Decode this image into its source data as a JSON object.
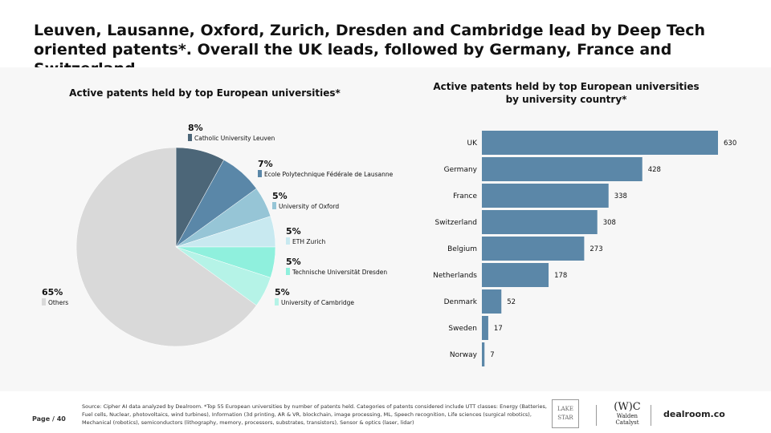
{
  "title": "Leuven, Lausanne, Oxford, Zurich, Dresden and Cambridge lead by Deep Tech oriented patents*. Overall the UK leads, followed by Germany, France and Switzerland.",
  "footer": {
    "source": "Source: Cipher AI data analyzed by Dealroom.  *Top 55 European universities by number of patents held. Categories of patents considered include UTT classes: Energy (Batteries, Fuel cells, Nuclear, photovoltaics, wind turbines), Information (3d printing, AR & VR, blockchain, image processing, ML, Speech recognition, Life sciences (surgical robotics), Mechanical (robotics), semiconductors (lithography, memory, processors, substrates, transistors), Sensor & optics (laser, lidar)",
    "page": "Page / 40",
    "logos": {
      "lake": "LAKE",
      "star": "STAR",
      "walden_mark": "(W)C",
      "walden": "Walden Catalyst",
      "dealroom": "dealroom.co"
    }
  },
  "chart_data": [
    {
      "type": "pie",
      "title": "Active patents held by top European universities*",
      "slices": [
        {
          "label": "Catholic University Leuven",
          "value": 8,
          "display": "8%",
          "color": "#4c6678"
        },
        {
          "label": "Ecole Polytechnique Fédérale de Lausanne",
          "value": 7,
          "display": "7%",
          "color": "#5a87a8"
        },
        {
          "label": "University of Oxford",
          "value": 5,
          "display": "5%",
          "color": "#96c5d6"
        },
        {
          "label": "ETH Zurich",
          "value": 5,
          "display": "5%",
          "color": "#c8e9f0"
        },
        {
          "label": "Technische Universität Dresden",
          "value": 5,
          "display": "5%",
          "color": "#8ff0dd"
        },
        {
          "label": "University of Cambridge",
          "value": 5,
          "display": "5%",
          "color": "#b5f3e7"
        },
        {
          "label": "Others",
          "value": 65,
          "display": "65%",
          "color": "#d9d9d9"
        }
      ]
    },
    {
      "type": "bar",
      "orientation": "horizontal",
      "title": "Active patents held by top European universities by university country*",
      "categories": [
        "UK",
        "Germany",
        "France",
        "Switzerland",
        "Belgium",
        "Netherlands",
        "Denmark",
        "Sweden",
        "Norway"
      ],
      "values": [
        630,
        428,
        338,
        308,
        273,
        178,
        52,
        17,
        7
      ],
      "color": "#5b87a8",
      "xlim": [
        0,
        630
      ]
    }
  ]
}
